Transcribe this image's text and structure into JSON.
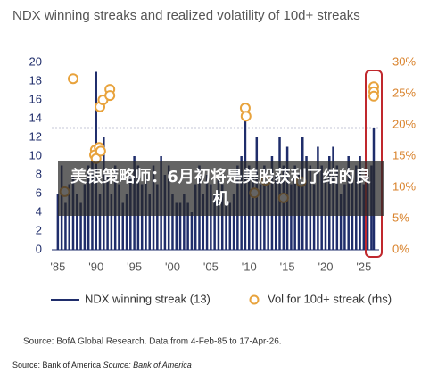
{
  "chart_data": {
    "type": "spike-scatter",
    "title": "NDX winning streaks and realized volatility of 10d+ streaks",
    "xlim": [
      1984.2,
      2027
    ],
    "xticks": [
      {
        "value": 1985,
        "label": "'85"
      },
      {
        "value": 1990,
        "label": "'90"
      },
      {
        "value": 1995,
        "label": "'95"
      },
      {
        "value": 2000,
        "label": "'00"
      },
      {
        "value": 2005,
        "label": "'05"
      },
      {
        "value": 2010,
        "label": "'10"
      },
      {
        "value": 2015,
        "label": "'15"
      },
      {
        "value": 2020,
        "label": "'20"
      },
      {
        "value": 2025,
        "label": "'25"
      }
    ],
    "ylim": [
      0,
      20
    ],
    "yticks": [
      0,
      2,
      4,
      6,
      8,
      10,
      12,
      14,
      16,
      18,
      20
    ],
    "y2lim": [
      0,
      30
    ],
    "y2ticks": [
      {
        "value": 0,
        "label": "0%"
      },
      {
        "value": 5,
        "label": "5%"
      },
      {
        "value": 10,
        "label": "10%"
      },
      {
        "value": 15,
        "label": "15%"
      },
      {
        "value": 20,
        "label": "20%"
      },
      {
        "value": 25,
        "label": "25%"
      },
      {
        "value": 30,
        "label": "30%"
      }
    ],
    "reference_line": 13,
    "series": [
      {
        "name": "NDX winning streak (13)",
        "color": "#1f2d6b",
        "x": [
          1985,
          1985.5,
          1986,
          1986.5,
          1987,
          1987.5,
          1988,
          1988.5,
          1989,
          1989.5,
          1990,
          1990.5,
          1991,
          1991.5,
          1992,
          1992.5,
          1993,
          1993.5,
          1994,
          1994.5,
          1995,
          1995.5,
          1996,
          1996.5,
          1997,
          1997.5,
          1998,
          1998.5,
          1999,
          1999.5,
          2000,
          2000.5,
          2001,
          2001.5,
          2002,
          2002.5,
          2003,
          2003.5,
          2004,
          2004.5,
          2005,
          2005.5,
          2006,
          2006.5,
          2007,
          2007.5,
          2008,
          2008.5,
          2009,
          2009.5,
          2010,
          2010.5,
          2011,
          2011.5,
          2012,
          2012.5,
          2013,
          2013.5,
          2014,
          2014.5,
          2015,
          2015.5,
          2016,
          2016.5,
          2017,
          2017.5,
          2018,
          2018.5,
          2019,
          2019.5,
          2020,
          2020.5,
          2021,
          2021.5,
          2022,
          2022.5,
          2023,
          2023.5,
          2024,
          2024.5,
          2025,
          2025.5,
          2026,
          2026.3
        ],
        "values": [
          6,
          9,
          5,
          7,
          8,
          6,
          5,
          7,
          9,
          10,
          19,
          6,
          12,
          8,
          6,
          9,
          7,
          5,
          6,
          8,
          10,
          9,
          7,
          8,
          6,
          9,
          7,
          10,
          8,
          9,
          6,
          5,
          5,
          6,
          5,
          4,
          7,
          9,
          6,
          8,
          7,
          6,
          8,
          7,
          6,
          5,
          6,
          9,
          10,
          14,
          9,
          8,
          12,
          7,
          9,
          8,
          10,
          8,
          12,
          9,
          11,
          7,
          9,
          8,
          12,
          10,
          9,
          7,
          11,
          9,
          8,
          10,
          11,
          9,
          6,
          7,
          10,
          8,
          9,
          10,
          7,
          8,
          9,
          13
        ]
      },
      {
        "name": "Vol for 10d+ streak (rhs)",
        "color": "#e8a33d",
        "axis": "y2",
        "x": [
          1985.9,
          1987.0,
          1989.9,
          1989.8,
          1990.0,
          1990.4,
          1990.6,
          1990.5,
          1990.9,
          1991.8,
          1991.8,
          2009.5,
          2009.6,
          2010.7,
          2012.2,
          2014.5,
          2016.8,
          2026.3,
          2026.3,
          2026.3
        ],
        "values": [
          9.3,
          27.4,
          16.0,
          15.2,
          14.6,
          16.4,
          15.8,
          22.9,
          24.0,
          25.7,
          24.7,
          22.7,
          21.4,
          9.1,
          11.1,
          8.3,
          10.9,
          26.1,
          25.3,
          24.6
        ]
      }
    ],
    "source": "Source: BofA Global Research. Data from 4-Feb-85 to 17-Apr-26."
  },
  "overlay": "美银策略师：6月初将是美股获利了结的良机",
  "footer": {
    "prefix": "Source: Bank of America",
    "italic": "Source: Bank of America"
  }
}
